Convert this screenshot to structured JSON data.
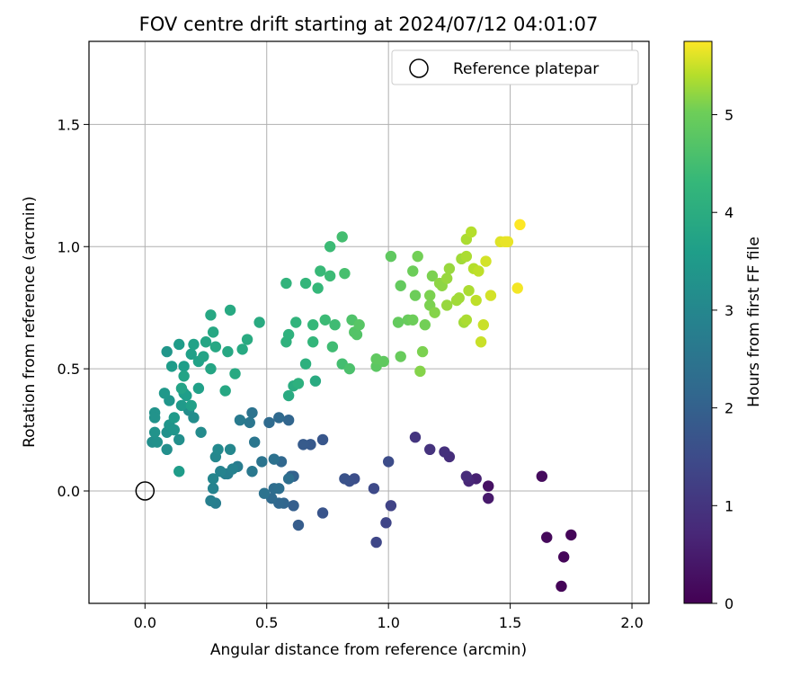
{
  "chart_data": {
    "type": "scatter",
    "title": "FOV centre drift starting at 2024/07/12 04:01:07",
    "xlabel": "Angular distance from reference (arcmin)",
    "ylabel": "Rotation from reference (arcmin)",
    "xlim": [
      -0.23,
      2.07
    ],
    "ylim": [
      -0.46,
      1.84
    ],
    "xticks": [
      0.0,
      0.5,
      1.0,
      1.5,
      2.0
    ],
    "xtick_labels": [
      "0.0",
      "0.5",
      "1.0",
      "1.5",
      "2.0"
    ],
    "yticks": [
      0.0,
      0.5,
      1.0,
      1.5
    ],
    "ytick_labels": [
      "0.0",
      "0.5",
      "1.0",
      "1.5"
    ],
    "grid": true,
    "colormap": "viridis",
    "colorbar": {
      "label": "Hours from first FF file",
      "range": [
        0,
        5.75
      ],
      "ticks": [
        0,
        1,
        2,
        3,
        4,
        5
      ],
      "tick_labels": [
        "0",
        "1",
        "2",
        "3",
        "4",
        "5"
      ]
    },
    "reference": {
      "label": "Reference platepar",
      "x": 0.0,
      "y": 0.0
    },
    "legend": {
      "placement": "top-right",
      "entries": [
        "Reference platepar"
      ]
    },
    "points": [
      [
        1.71,
        -0.39,
        0.05
      ],
      [
        1.75,
        -0.18,
        0.08
      ],
      [
        1.72,
        -0.27,
        0.1
      ],
      [
        1.65,
        -0.19,
        0.14
      ],
      [
        1.63,
        0.06,
        0.18
      ],
      [
        1.41,
        0.02,
        0.3
      ],
      [
        1.41,
        -0.03,
        0.45
      ],
      [
        1.36,
        0.05,
        0.6
      ],
      [
        1.33,
        0.04,
        0.7
      ],
      [
        1.32,
        0.06,
        0.8
      ],
      [
        1.25,
        0.14,
        0.85
      ],
      [
        1.23,
        0.16,
        0.9
      ],
      [
        1.17,
        0.17,
        0.95
      ],
      [
        1.11,
        0.22,
        1.0
      ],
      [
        1.01,
        -0.06,
        1.3
      ],
      [
        0.99,
        -0.13,
        1.35
      ],
      [
        0.95,
        -0.21,
        1.4
      ],
      [
        0.94,
        0.01,
        1.45
      ],
      [
        1.0,
        0.12,
        1.5
      ],
      [
        0.86,
        0.05,
        1.55
      ],
      [
        0.84,
        0.04,
        1.6
      ],
      [
        0.82,
        0.05,
        1.65
      ],
      [
        0.73,
        -0.09,
        1.7
      ],
      [
        0.73,
        0.21,
        1.75
      ],
      [
        0.68,
        0.19,
        1.8
      ],
      [
        0.65,
        0.19,
        1.85
      ],
      [
        0.63,
        -0.14,
        1.9
      ],
      [
        0.61,
        -0.06,
        1.95
      ],
      [
        0.61,
        0.06,
        2.0
      ],
      [
        0.6,
        0.06,
        2.05
      ],
      [
        0.57,
        -0.05,
        2.1
      ],
      [
        0.59,
        0.29,
        2.1
      ],
      [
        0.55,
        -0.05,
        2.15
      ],
      [
        0.56,
        0.12,
        2.15
      ],
      [
        0.55,
        0.3,
        2.2
      ],
      [
        0.52,
        -0.03,
        2.25
      ],
      [
        0.51,
        0.28,
        2.25
      ],
      [
        0.53,
        0.01,
        2.3
      ],
      [
        0.55,
        0.01,
        2.35
      ],
      [
        0.59,
        0.05,
        2.35
      ],
      [
        0.53,
        0.13,
        2.4
      ],
      [
        0.49,
        -0.01,
        2.45
      ],
      [
        0.44,
        0.32,
        2.45
      ],
      [
        0.48,
        0.12,
        2.5
      ],
      [
        0.45,
        0.2,
        2.55
      ],
      [
        0.43,
        0.28,
        2.55
      ],
      [
        0.44,
        0.08,
        2.6
      ],
      [
        0.39,
        0.29,
        2.65
      ],
      [
        0.38,
        0.1,
        2.7
      ],
      [
        0.34,
        0.07,
        2.75
      ],
      [
        0.29,
        -0.05,
        2.75
      ],
      [
        0.33,
        0.07,
        2.8
      ],
      [
        0.27,
        -0.04,
        2.8
      ],
      [
        0.36,
        0.09,
        2.85
      ],
      [
        0.31,
        0.08,
        2.9
      ],
      [
        0.28,
        0.01,
        2.9
      ],
      [
        0.28,
        0.05,
        2.95
      ],
      [
        0.29,
        0.14,
        3.0
      ],
      [
        0.35,
        0.17,
        3.0
      ],
      [
        0.3,
        0.17,
        3.05
      ],
      [
        0.23,
        0.24,
        3.1
      ],
      [
        0.2,
        0.3,
        3.15
      ],
      [
        0.18,
        0.33,
        3.15
      ],
      [
        0.14,
        0.21,
        3.2
      ],
      [
        0.09,
        0.17,
        3.2
      ],
      [
        0.03,
        0.2,
        3.2
      ],
      [
        0.05,
        0.2,
        3.25
      ],
      [
        0.09,
        0.24,
        3.25
      ],
      [
        0.04,
        0.24,
        3.3
      ],
      [
        0.04,
        0.32,
        3.3
      ],
      [
        0.04,
        0.3,
        3.3
      ],
      [
        0.1,
        0.27,
        3.35
      ],
      [
        0.12,
        0.25,
        3.35
      ],
      [
        0.1,
        0.37,
        3.35
      ],
      [
        0.09,
        0.57,
        3.4
      ],
      [
        0.08,
        0.4,
        3.45
      ],
      [
        0.12,
        0.3,
        3.5
      ],
      [
        0.15,
        0.35,
        3.5
      ],
      [
        0.11,
        0.51,
        3.55
      ],
      [
        0.14,
        0.08,
        3.55
      ],
      [
        0.14,
        0.6,
        3.55
      ],
      [
        0.16,
        0.51,
        3.6
      ],
      [
        0.16,
        0.4,
        3.6
      ],
      [
        0.17,
        0.39,
        3.6
      ],
      [
        0.19,
        0.35,
        3.65
      ],
      [
        0.19,
        0.56,
        3.65
      ],
      [
        0.22,
        0.42,
        3.65
      ],
      [
        0.22,
        0.53,
        3.7
      ],
      [
        0.2,
        0.6,
        3.7
      ],
      [
        0.15,
        0.42,
        3.75
      ],
      [
        0.16,
        0.47,
        3.75
      ],
      [
        0.24,
        0.55,
        3.75
      ],
      [
        0.25,
        0.61,
        3.8
      ],
      [
        0.27,
        0.5,
        3.8
      ],
      [
        0.28,
        0.65,
        3.85
      ],
      [
        0.27,
        0.72,
        3.85
      ],
      [
        0.29,
        0.59,
        3.85
      ],
      [
        0.33,
        0.41,
        3.85
      ],
      [
        0.34,
        0.57,
        3.85
      ],
      [
        0.35,
        0.74,
        3.9
      ],
      [
        0.37,
        0.48,
        3.9
      ],
      [
        0.4,
        0.58,
        3.9
      ],
      [
        0.42,
        0.62,
        3.95
      ],
      [
        0.47,
        0.69,
        3.95
      ],
      [
        0.59,
        0.39,
        3.95
      ],
      [
        0.7,
        0.45,
        3.95
      ],
      [
        0.61,
        0.43,
        4.0
      ],
      [
        0.63,
        0.44,
        4.1
      ],
      [
        0.66,
        0.52,
        4.1
      ],
      [
        0.58,
        0.61,
        4.15
      ],
      [
        0.59,
        0.64,
        4.15
      ],
      [
        0.62,
        0.69,
        4.2
      ],
      [
        0.58,
        0.85,
        4.2
      ],
      [
        0.66,
        0.85,
        4.25
      ],
      [
        0.69,
        0.61,
        4.25
      ],
      [
        0.69,
        0.68,
        4.3
      ],
      [
        0.71,
        0.83,
        4.3
      ],
      [
        0.72,
        0.9,
        4.35
      ],
      [
        0.74,
        0.7,
        4.4
      ],
      [
        0.76,
        0.88,
        4.4
      ],
      [
        0.76,
        1.0,
        4.4
      ],
      [
        0.77,
        0.59,
        4.45
      ],
      [
        0.78,
        0.68,
        4.45
      ],
      [
        0.81,
        0.52,
        4.5
      ],
      [
        0.81,
        1.04,
        4.5
      ],
      [
        0.82,
        0.89,
        4.55
      ],
      [
        0.84,
        0.5,
        4.6
      ],
      [
        0.85,
        0.7,
        4.65
      ],
      [
        0.87,
        0.64,
        4.7
      ],
      [
        0.86,
        0.65,
        4.7
      ],
      [
        0.88,
        0.68,
        4.75
      ],
      [
        0.95,
        0.51,
        4.8
      ],
      [
        0.95,
        0.54,
        4.85
      ],
      [
        0.98,
        0.53,
        4.85
      ],
      [
        1.01,
        0.96,
        4.85
      ],
      [
        1.04,
        0.69,
        4.9
      ],
      [
        1.05,
        0.84,
        4.9
      ],
      [
        1.05,
        0.55,
        4.95
      ],
      [
        1.08,
        0.7,
        4.95
      ],
      [
        1.1,
        0.9,
        5.0
      ],
      [
        1.1,
        0.7,
        5.0
      ],
      [
        1.11,
        0.8,
        5.0
      ],
      [
        1.12,
        0.96,
        5.05
      ],
      [
        1.15,
        0.68,
        5.05
      ],
      [
        1.14,
        0.57,
        5.1
      ],
      [
        1.17,
        0.76,
        5.1
      ],
      [
        1.17,
        0.8,
        5.1
      ],
      [
        1.18,
        0.88,
        5.1
      ],
      [
        1.19,
        0.73,
        5.15
      ],
      [
        1.13,
        0.49,
        5.15
      ],
      [
        1.21,
        0.85,
        5.2
      ],
      [
        1.22,
        0.84,
        5.2
      ],
      [
        1.24,
        0.76,
        5.25
      ],
      [
        1.24,
        0.87,
        5.25
      ],
      [
        1.25,
        0.91,
        5.25
      ],
      [
        1.28,
        0.78,
        5.3
      ],
      [
        1.3,
        0.95,
        5.3
      ],
      [
        1.31,
        0.69,
        5.3
      ],
      [
        1.32,
        0.96,
        5.35
      ],
      [
        1.32,
        1.03,
        5.35
      ],
      [
        1.33,
        0.82,
        5.35
      ],
      [
        1.34,
        1.06,
        5.4
      ],
      [
        1.35,
        0.91,
        5.4
      ],
      [
        1.36,
        0.78,
        5.45
      ],
      [
        1.37,
        0.9,
        5.45
      ],
      [
        1.38,
        0.61,
        5.5
      ],
      [
        1.39,
        0.68,
        5.5
      ],
      [
        1.4,
        0.94,
        5.55
      ],
      [
        1.42,
        0.8,
        5.55
      ],
      [
        1.46,
        1.02,
        5.6
      ],
      [
        1.48,
        1.02,
        5.65
      ],
      [
        1.49,
        1.02,
        5.65
      ],
      [
        1.53,
        0.83,
        5.7
      ],
      [
        1.54,
        1.09,
        5.75
      ],
      [
        1.29,
        0.79,
        5.3
      ],
      [
        1.32,
        0.7,
        5.35
      ]
    ]
  }
}
